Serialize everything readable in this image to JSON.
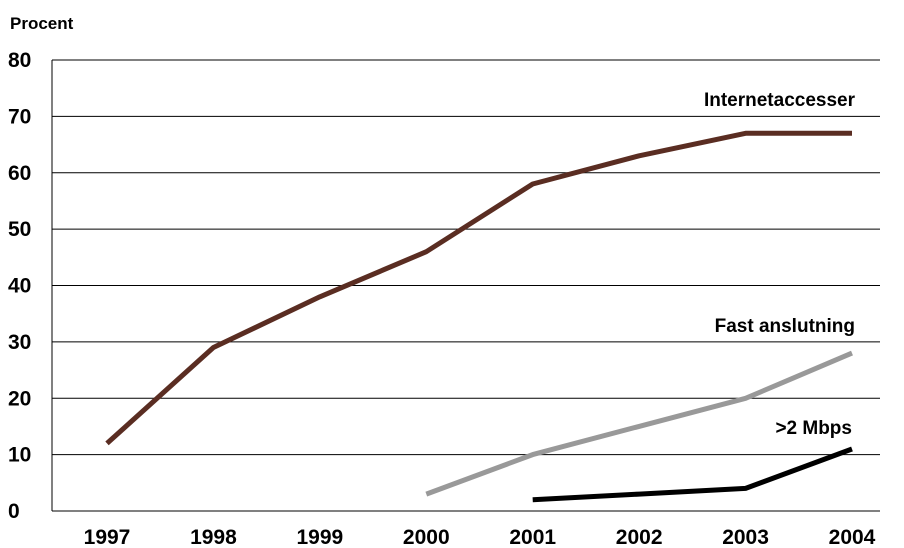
{
  "chart_data": {
    "type": "line",
    "title": "",
    "xlabel": "",
    "ylabel": "Procent",
    "x": [
      1997,
      1998,
      1999,
      2000,
      2001,
      2002,
      2003,
      2004
    ],
    "x_tick_labels": [
      "1997",
      "1998",
      "1999",
      "2000",
      "2001",
      "2002",
      "2003",
      "2004"
    ],
    "ylim": [
      0,
      80
    ],
    "y_ticks": [
      0,
      10,
      20,
      30,
      40,
      50,
      60,
      70,
      80
    ],
    "y_tick_labels": [
      "0",
      "10",
      "20",
      "30",
      "40",
      "50",
      "60",
      "70",
      "80"
    ],
    "grid": "horizontal",
    "legend": "inline-labels",
    "series": [
      {
        "name": "Internetaccesser",
        "color": "#5a2d22",
        "values": [
          12,
          29,
          38,
          46,
          58,
          63,
          67,
          67
        ]
      },
      {
        "name": "Fast anslutning",
        "color": "#999999",
        "values": [
          null,
          null,
          null,
          3,
          10,
          15,
          20,
          28
        ]
      },
      {
        "name": ">2 Mbps",
        "color": "#000000",
        "values": [
          null,
          null,
          null,
          null,
          2,
          3,
          4,
          11
        ]
      }
    ]
  }
}
